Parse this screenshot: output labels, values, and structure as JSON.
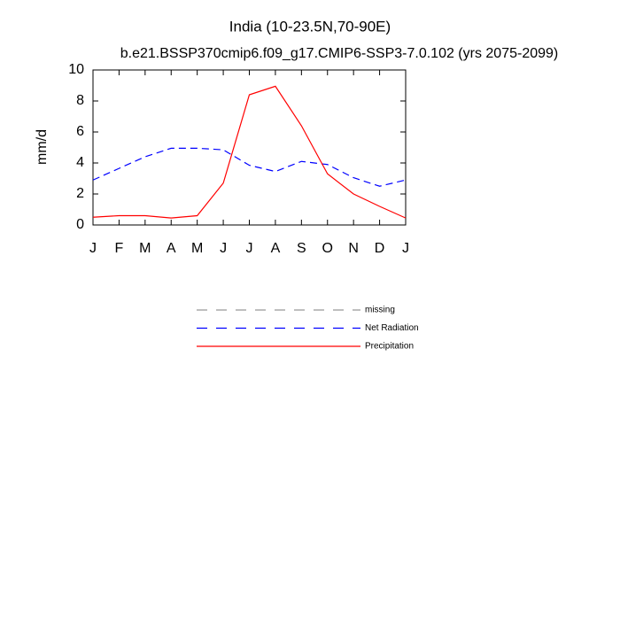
{
  "chart_data": {
    "type": "line",
    "title": "India (10-23.5N,70-90E)",
    "subtitle": "b.e21.BSSP370cmip6.f09_g17.CMIP6-SSP3-7.0.102 (yrs 2075-2099)",
    "y_label": "mm/d",
    "categories": [
      "J",
      "F",
      "M",
      "A",
      "M",
      "J",
      "J",
      "A",
      "S",
      "O",
      "N",
      "D",
      "J"
    ],
    "series": [
      {
        "name": "missing",
        "color": "#999999",
        "line_style": "dashed",
        "values": [
          null,
          null,
          null,
          null,
          null,
          null,
          null,
          null,
          null,
          null,
          null,
          null,
          null
        ]
      },
      {
        "name": "Net Radiation",
        "color": "#0000ff",
        "line_style": "dashed",
        "values": [
          2.9,
          3.65,
          4.4,
          4.95,
          4.95,
          4.85,
          3.85,
          3.45,
          4.1,
          3.9,
          3.05,
          2.5,
          2.9
        ]
      },
      {
        "name": "Precipitation",
        "color": "#ff0000",
        "line_style": "solid",
        "values": [
          0.5,
          0.6,
          0.6,
          0.45,
          0.6,
          2.7,
          8.4,
          8.95,
          6.4,
          3.3,
          2.0,
          1.2,
          0.45
        ]
      }
    ],
    "ylim": [
      0,
      10
    ],
    "yticks": [
      0,
      2,
      4,
      6,
      8,
      10
    ],
    "grid": false,
    "legend": "below"
  }
}
